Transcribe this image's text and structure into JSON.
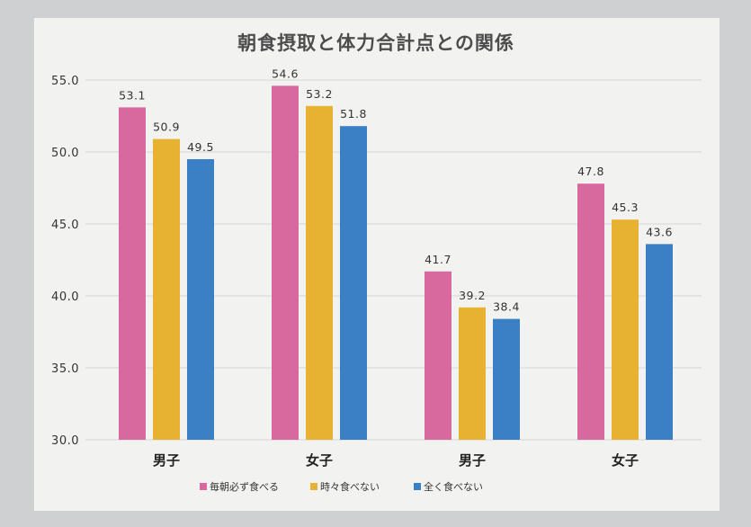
{
  "chart_data": {
    "type": "bar",
    "title": "朝食摂取と体力合計点との関係",
    "categories": [
      "男子",
      "女子",
      "男子",
      "女子"
    ],
    "series": [
      {
        "name": "毎朝必ず食べる",
        "color": "#d8699f",
        "values": [
          53.1,
          54.6,
          41.7,
          47.8
        ]
      },
      {
        "name": "時々食べない",
        "color": "#e7b231",
        "values": [
          50.9,
          53.2,
          39.2,
          45.3
        ]
      },
      {
        "name": "全く食べない",
        "color": "#3b7fc4",
        "values": [
          49.5,
          51.8,
          38.4,
          43.6
        ]
      }
    ],
    "ylim": [
      30,
      55
    ],
    "yticks": [
      "30.0",
      "35.0",
      "40.0",
      "45.0",
      "50.0",
      "55.0"
    ],
    "grid": true,
    "legend": "bottom"
  },
  "colors": {
    "paper": "#f2f3f1",
    "background": "#cfd0d2"
  }
}
